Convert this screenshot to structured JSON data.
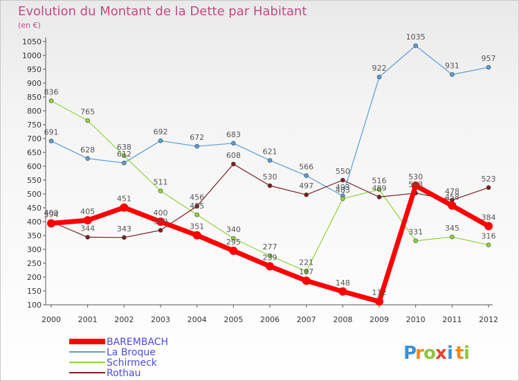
{
  "chart_data": {
    "type": "line",
    "title": "Evolution du Montant de la Dette par Habitant",
    "subtitle": "(en €)",
    "xlabel": "",
    "ylabel": "",
    "x": [
      "2000",
      "2001",
      "2002",
      "2003",
      "2004",
      "2005",
      "2006",
      "2007",
      "2008",
      "2009",
      "2010",
      "2011",
      "2012"
    ],
    "ylim": [
      100,
      1050
    ],
    "yticks": [
      100,
      150,
      200,
      250,
      300,
      350,
      400,
      450,
      500,
      550,
      600,
      650,
      700,
      750,
      800,
      850,
      900,
      950,
      1000,
      1050
    ],
    "grid": false,
    "legend": "bottom-left",
    "series": [
      {
        "name": "BAREMBACH",
        "color": "#ff0000",
        "values": [
          394,
          405,
          451,
          400,
          351,
          295,
          239,
          187,
          148,
          112,
          530,
          458,
          384
        ]
      },
      {
        "name": "La Broque",
        "color": "#5b9bd5",
        "values": [
          691,
          628,
          612,
          692,
          672,
          683,
          621,
          566,
          493,
          922,
          1035,
          931,
          957
        ]
      },
      {
        "name": "Schirmeck",
        "color": "#8cd43c",
        "values": [
          836,
          765,
          638,
          511,
          425,
          340,
          277,
          221,
          483,
          516,
          331,
          345,
          316
        ]
      },
      {
        "name": "Rothau",
        "color": "#7b1f1f",
        "values": [
          400,
          344,
          343,
          369,
          456,
          608,
          530,
          497,
          550,
          489,
          503,
          478,
          523
        ]
      }
    ]
  },
  "logo": {
    "letters": [
      "P",
      "r",
      "o",
      "x",
      "i",
      "t",
      "i"
    ],
    "colors": [
      "#3a8fd6",
      "#f08a1c",
      "#8cc63f",
      "#e8402a",
      "#3a8fd6",
      "#f08a1c",
      "#8cc63f"
    ]
  }
}
